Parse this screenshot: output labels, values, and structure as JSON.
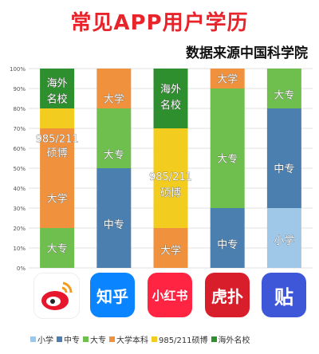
{
  "title": "常见APP用户学历",
  "subtitle": "数据来源中国科学院",
  "colors": {
    "小学": "#9fc7e8",
    "中专": "#4a7fb0",
    "大专": "#6fbf4f",
    "大学本科": "#f0923d",
    "985/211硕博": "#f2cc1e",
    "海外名校": "#2e8f2e"
  },
  "apps": [
    {
      "icon": "weibo-icon"
    },
    {
      "icon": "zhihu-icon",
      "label": "知乎"
    },
    {
      "icon": "xiaohongshu-icon",
      "label": "小红书"
    },
    {
      "icon": "hupu-icon",
      "label": "虎扑"
    },
    {
      "icon": "tieba-icon",
      "label": "贴"
    }
  ],
  "chart_data": {
    "type": "bar",
    "stacked": true,
    "y_tick_labels": [
      "0%",
      "10%",
      "20%",
      "30%",
      "40%",
      "50%",
      "60%",
      "70%",
      "80%",
      "90%",
      "100%"
    ],
    "ylim": [
      0,
      100
    ],
    "categories": [
      "微博",
      "知乎",
      "小红书",
      "虎扑",
      "贴吧"
    ],
    "series": [
      {
        "name": "小学",
        "values": [
          0,
          0,
          0,
          0,
          30
        ]
      },
      {
        "name": "中专",
        "values": [
          0,
          50,
          0,
          30,
          50
        ]
      },
      {
        "name": "大专",
        "values": [
          20,
          30,
          0,
          60,
          20
        ]
      },
      {
        "name": "大学本科",
        "values": [
          50,
          20,
          20,
          10,
          0
        ]
      },
      {
        "name": "985/211硕博",
        "values": [
          10,
          0,
          50,
          0,
          0
        ]
      },
      {
        "name": "海外名校",
        "values": [
          20,
          0,
          30,
          0,
          0
        ]
      }
    ],
    "data_labels": [
      [
        {
          "text": "大专",
          "y": 10
        },
        {
          "text": "大学",
          "y": 35
        },
        {
          "text": "985/211",
          "y": 65
        },
        {
          "text": "硕博",
          "y": 58
        },
        {
          "text": "海外",
          "y": 93
        },
        {
          "text": "名校",
          "y": 85
        }
      ],
      [
        {
          "text": "中专",
          "y": 22
        },
        {
          "text": "大专",
          "y": 57
        },
        {
          "text": "大学",
          "y": 85
        }
      ],
      [
        {
          "text": "大学",
          "y": 9
        },
        {
          "text": "985/211",
          "y": 46
        },
        {
          "text": "硕博",
          "y": 38
        },
        {
          "text": "海外",
          "y": 90
        },
        {
          "text": "名校",
          "y": 82
        }
      ],
      [
        {
          "text": "中专",
          "y": 12
        },
        {
          "text": "大专",
          "y": 55
        },
        {
          "text": "大学",
          "y": 95
        }
      ],
      [
        {
          "text": "小学",
          "y": 14
        },
        {
          "text": "中专",
          "y": 50
        },
        {
          "text": "大专",
          "y": 87
        }
      ]
    ],
    "legend": [
      "小学",
      "中专",
      "大专",
      "大学本科",
      "985/211硕博",
      "海外名校"
    ],
    "legend_position": "bottom"
  }
}
